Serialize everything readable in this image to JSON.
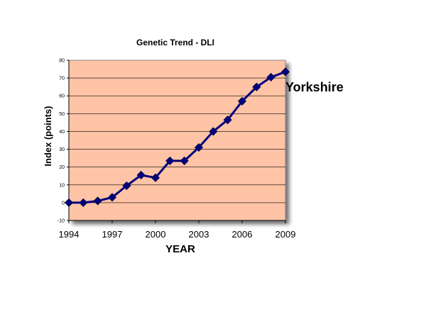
{
  "chart_data": {
    "type": "line",
    "title": "Genetic Trend - DLI",
    "xlabel": "YEAR",
    "ylabel": "Index (points)",
    "xlim": [
      1994,
      2009
    ],
    "ylim": [
      -10,
      80
    ],
    "y_ticks": [
      -10,
      0,
      10,
      20,
      30,
      40,
      50,
      60,
      70,
      80
    ],
    "x_ticks": [
      1994,
      1997,
      2000,
      2003,
      2006,
      2009
    ],
    "grid": "horizontal",
    "background_color": "#FFC4A6",
    "series": [
      {
        "name": "Yorkshire",
        "color": "#000080",
        "x": [
          1994,
          1995,
          1996,
          1997,
          1998,
          1999,
          2000,
          2001,
          2002,
          2003,
          2004,
          2005,
          2006,
          2007,
          2008,
          2009
        ],
        "y": [
          0,
          0,
          1,
          3,
          9.5,
          15.5,
          14,
          23.5,
          23.5,
          31,
          40,
          46.5,
          57,
          65,
          70.5,
          73.5
        ]
      }
    ]
  }
}
